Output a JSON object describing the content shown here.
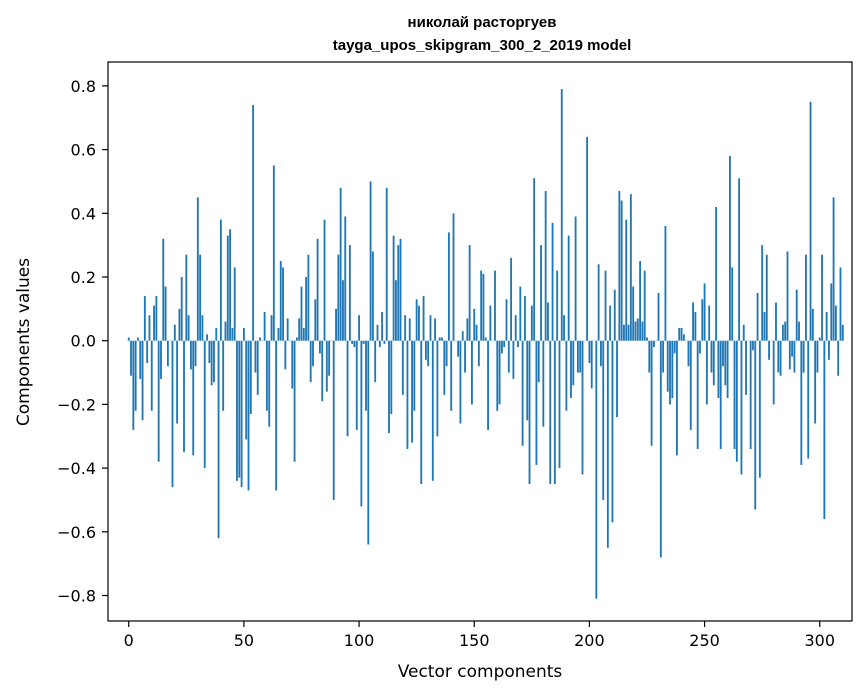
{
  "chart_data": {
    "type": "bar",
    "title": "николай расторгуев",
    "subtitle": "tayga_upos_skipgram_300_2_2019 model",
    "xlabel": "Vector components",
    "ylabel": "Components values",
    "xlim": [
      -9,
      314
    ],
    "ylim": [
      -0.88,
      0.875
    ],
    "xticks": [
      0,
      50,
      100,
      150,
      200,
      250,
      300
    ],
    "yticks": [
      -0.8,
      -0.6,
      -0.4,
      -0.2,
      0.0,
      0.2,
      0.4,
      0.6,
      0.8
    ],
    "ytick_labels": [
      "−0.8",
      "−0.6",
      "−0.4",
      "−0.2",
      "0.0",
      "0.2",
      "0.4",
      "0.6",
      "0.8"
    ],
    "grid": false,
    "legend": "none",
    "bar_color": "#1f77b4",
    "values": [
      0.01,
      -0.11,
      -0.28,
      -0.22,
      0.01,
      -0.12,
      -0.25,
      0.14,
      -0.07,
      0.08,
      -0.22,
      0.11,
      0.14,
      -0.38,
      -0.12,
      0.32,
      0.17,
      -0.08,
      0.0,
      -0.46,
      0.05,
      -0.26,
      0.1,
      0.2,
      -0.35,
      0.27,
      0.08,
      -0.09,
      -0.36,
      -0.08,
      0.45,
      0.27,
      0.08,
      -0.4,
      0.02,
      -0.07,
      -0.14,
      -0.13,
      0.04,
      -0.62,
      0.38,
      -0.22,
      0.06,
      0.33,
      0.35,
      0.04,
      0.23,
      -0.44,
      -0.43,
      -0.46,
      0.04,
      -0.31,
      -0.47,
      -0.23,
      0.74,
      -0.1,
      -0.17,
      0.01,
      0.0,
      0.09,
      -0.22,
      -0.27,
      0.08,
      0.55,
      -0.47,
      0.04,
      0.25,
      0.23,
      -0.09,
      0.07,
      0.0,
      -0.15,
      -0.38,
      0.01,
      0.07,
      0.17,
      0.04,
      0.2,
      0.27,
      -0.13,
      -0.08,
      0.13,
      0.32,
      -0.04,
      -0.19,
      0.38,
      -0.16,
      -0.11,
      0.0,
      -0.5,
      0.1,
      0.27,
      0.48,
      0.19,
      0.39,
      -0.3,
      0.3,
      -0.01,
      -0.02,
      -0.28,
      0.08,
      -0.52,
      -0.01,
      -0.22,
      -0.64,
      0.5,
      0.28,
      -0.13,
      0.05,
      -0.02,
      0.09,
      -0.01,
      0.48,
      -0.29,
      -0.23,
      0.33,
      0.19,
      0.3,
      0.32,
      -0.17,
      0.08,
      -0.34,
      0.07,
      -0.32,
      -0.22,
      0.13,
      0.11,
      -0.45,
      0.14,
      -0.06,
      -0.08,
      0.08,
      -0.44,
      0.07,
      -0.3,
      0.01,
      0.01,
      -0.17,
      -0.08,
      0.34,
      -0.22,
      0.4,
      0.0,
      -0.05,
      -0.26,
      0.03,
      -0.1,
      0.07,
      0.3,
      -0.2,
      0.1,
      0.05,
      -0.08,
      0.22,
      0.21,
      0.01,
      -0.28,
      0.11,
      0.0,
      0.22,
      -0.22,
      -0.2,
      -0.04,
      -0.02,
      0.13,
      -0.1,
      0.26,
      -0.12,
      0.08,
      -0.02,
      0.17,
      -0.33,
      0.14,
      -0.25,
      -0.45,
      0.11,
      0.51,
      -0.39,
      -0.13,
      0.3,
      -0.27,
      0.47,
      0.12,
      -0.45,
      0.37,
      -0.45,
      0.22,
      -0.4,
      0.79,
      0.08,
      -0.22,
      0.33,
      -0.18,
      -0.14,
      0.39,
      -0.1,
      -0.1,
      -0.42,
      0.0,
      0.64,
      -0.07,
      -0.15,
      0.0,
      -0.81,
      0.24,
      -0.08,
      -0.5,
      0.22,
      -0.65,
      0.11,
      -0.57,
      0.16,
      -0.24,
      0.47,
      0.44,
      0.05,
      0.38,
      0.05,
      0.46,
      0.17,
      0.06,
      0.07,
      0.25,
      0.06,
      0.22,
      0.01,
      -0.1,
      -0.33,
      -0.02,
      0.0,
      0.15,
      -0.68,
      -0.1,
      0.36,
      -0.16,
      -0.2,
      -0.18,
      -0.04,
      -0.36,
      0.04,
      0.04,
      0.02,
      0.0,
      -0.08,
      -0.28,
      0.12,
      0.09,
      -0.34,
      -0.04,
      0.13,
      0.18,
      -0.2,
      0.11,
      -0.1,
      -0.14,
      0.42,
      -0.18,
      -0.34,
      -0.08,
      -0.14,
      -0.18,
      0.58,
      0.23,
      -0.34,
      -0.38,
      0.51,
      -0.42,
      0.05,
      -0.17,
      0.0,
      -0.34,
      -0.03,
      -0.53,
      0.15,
      -0.43,
      0.3,
      0.09,
      0.27,
      -0.06,
      0.0,
      -0.2,
      0.12,
      -0.1,
      -0.11,
      0.05,
      0.06,
      0.28,
      -0.09,
      -0.05,
      -0.1,
      0.16,
      0.06,
      -0.39,
      -0.1,
      0.27,
      -0.37,
      0.75,
      0.1,
      -0.26,
      -0.1,
      0.01,
      0.27,
      -0.56,
      0.09,
      -0.06,
      0.18,
      0.45,
      0.11,
      -0.11,
      0.23,
      0.05
    ]
  }
}
